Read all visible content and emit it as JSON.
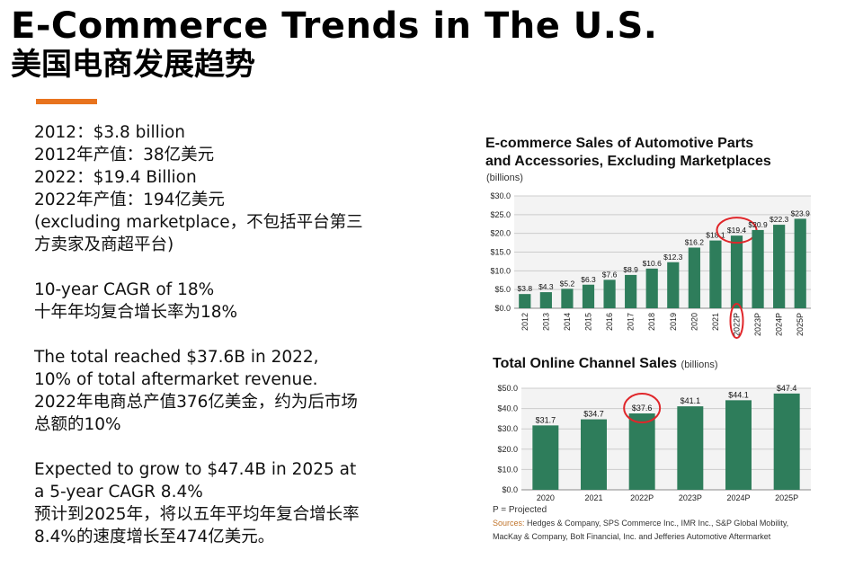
{
  "header": {
    "title": "E-Commerce Trends in The U.S.",
    "subtitle": "美国电商发展趋势",
    "accent_color": "#e8731e"
  },
  "notes": {
    "block1": [
      "2012：$3.8 billion",
      "2012年产值：38亿美元",
      "2022：$19.4 Billion",
      "2022年产值：194亿美元",
      "(excluding marketplace，不包括平台第三",
      "方卖家及商超平台)"
    ],
    "block2": [
      "10-year CAGR of 18%",
      "十年年均复合增长率为18%"
    ],
    "block3": [
      "The total reached $37.6B in 2022,",
      "10% of total aftermarket revenue.",
      "2022年电商总产值376亿美金，约为后市场",
      "总额的10%"
    ],
    "block4": [
      "Expected to grow to $47.4B in 2025 at",
      "a 5-year CAGR 8.4%",
      "预计到2025年，将以五年平均年复合增长率",
      "8.4%的速度增长至474亿美元。"
    ]
  },
  "chart_data": [
    {
      "type": "bar",
      "title": "E-commerce Sales of Automotive Parts and Accessories, Excluding Marketplaces",
      "title_lines": [
        "E-commerce Sales of Automotive Parts",
        "and Accessories, Excluding Marketplaces"
      ],
      "unit_label": "(billions)",
      "categories": [
        "2012",
        "2013",
        "2014",
        "2015",
        "2016",
        "2017",
        "2018",
        "2019",
        "2020",
        "2021",
        "2022P",
        "2023P",
        "2024P",
        "2025P"
      ],
      "values": [
        3.8,
        4.3,
        5.2,
        6.3,
        7.6,
        8.9,
        10.6,
        12.3,
        16.2,
        18.1,
        19.4,
        20.9,
        22.3,
        23.9
      ],
      "value_labels": [
        "$3.8",
        "$4.3",
        "$5.2",
        "$6.3",
        "$7.6",
        "$8.9",
        "$10.6",
        "$12.3",
        "$16.2",
        "$18.1",
        "$19.4",
        "$20.9",
        "$22.3",
        "$23.9"
      ],
      "yticks": [
        "$0.0",
        "$5.0",
        "$10.0",
        "$15.0",
        "$20.0",
        "$25.0",
        "$30.0"
      ],
      "ylim": [
        0,
        30
      ],
      "grid": true,
      "bar_color": "#2e7d5b",
      "highlight_color": "#e0262a",
      "highlighted_category": "2022P"
    },
    {
      "type": "bar",
      "title": "Total Online Channel Sales",
      "unit_label": "(billions)",
      "categories": [
        "2020",
        "2021",
        "2022P",
        "2023P",
        "2024P",
        "2025P"
      ],
      "values": [
        31.7,
        34.7,
        37.6,
        41.1,
        44.1,
        47.4
      ],
      "value_labels": [
        "$31.7",
        "$34.7",
        "$37.6",
        "$41.1",
        "$44.1",
        "$47.4"
      ],
      "yticks": [
        "$0.0",
        "$10.0",
        "$20.0",
        "$30.0",
        "$40.0",
        "$50.0"
      ],
      "ylim": [
        0,
        50
      ],
      "grid": true,
      "bar_color": "#2e7d5b",
      "highlight_color": "#e0262a",
      "highlighted_category": "2022P"
    }
  ],
  "footnote": {
    "projected": "P = Projected",
    "sources_label": "Sources:",
    "sources_line1": "Hedges & Company, SPS Commerce Inc., IMR Inc., S&P Global Mobility,",
    "sources_line2": "MacKay & Company, Bolt Financial, Inc. and  Jefferies Automotive Aftermarket"
  }
}
